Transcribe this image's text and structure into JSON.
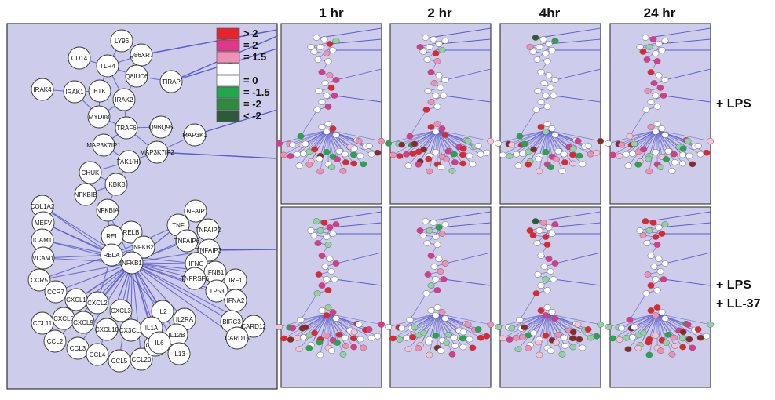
{
  "columns": [
    "1 hr",
    "2 hr",
    "4hr",
    "24 hr"
  ],
  "conditions": [
    "+ LPS",
    "+ LPS\n+ LL-37"
  ],
  "condition_lines": [
    [
      "+ LPS"
    ],
    [
      "+ LPS",
      "+ LL-37"
    ]
  ],
  "legend": [
    {
      "label": "> 2",
      "color": "#e8232b"
    },
    {
      "label": "= 2",
      "color": "#e0378a"
    },
    {
      "label": "= 1.5",
      "color": "#f28fb4"
    },
    {
      "label": "",
      "color": "#ffffff"
    },
    {
      "label": "= 0",
      "color": "#ffffff"
    },
    {
      "label": "= -1.5",
      "color": "#20a84a"
    },
    {
      "label": "= -2",
      "color": "#2e8b3e"
    },
    {
      "label": "< -2",
      "color": "#2f5a3a"
    }
  ],
  "colors": {
    "panel_bg": "#cdcdeb",
    "edge": "#5a5ad2",
    "node_fill": "#ffffff",
    "node_stroke": "#333333",
    "dark_red": "#8b2a25"
  },
  "genes": [
    "LY96",
    "CD14",
    "TLR4",
    "Q86XR7",
    "Q8IUC6",
    "TIRAP",
    "IRAK4",
    "IRAK1",
    "BTK",
    "IRAK2",
    "MYD88",
    "TRAF6",
    "Q9BQ95",
    "MAP3K7IP1",
    "MAP3K7IP2",
    "MAP3K1",
    "TAK1(H)",
    "CHUK",
    "IKBKB",
    "NFKBIB",
    "NFKBIA",
    "COL1A2",
    "MEFV",
    "ICAM1",
    "VCAM1",
    "CCR5",
    "CCR7",
    "RELB",
    "REL",
    "RELA",
    "NFKB2",
    "NFKB1",
    "TNF",
    "TNFAIP1",
    "TNFAIP2",
    "TNFAIP6",
    "TNFAIP3",
    "IFNG",
    "IFNB1",
    "TNFRSF6",
    "IRF1",
    "TP53",
    "IFNA2",
    "CXCL1",
    "CXCL2",
    "CXCL3",
    "CX3CL1",
    "CXCL5",
    "CXCL9",
    "CXCL10",
    "CCL11",
    "CCL2",
    "CCL3",
    "CCL4",
    "CCL5",
    "CCL20",
    "CCL22",
    "IL2",
    "IL2RA",
    "IL1A",
    "IL12B",
    "IL6",
    "IL13",
    "BIRC3",
    "CARD12",
    "CARD15"
  ]
}
